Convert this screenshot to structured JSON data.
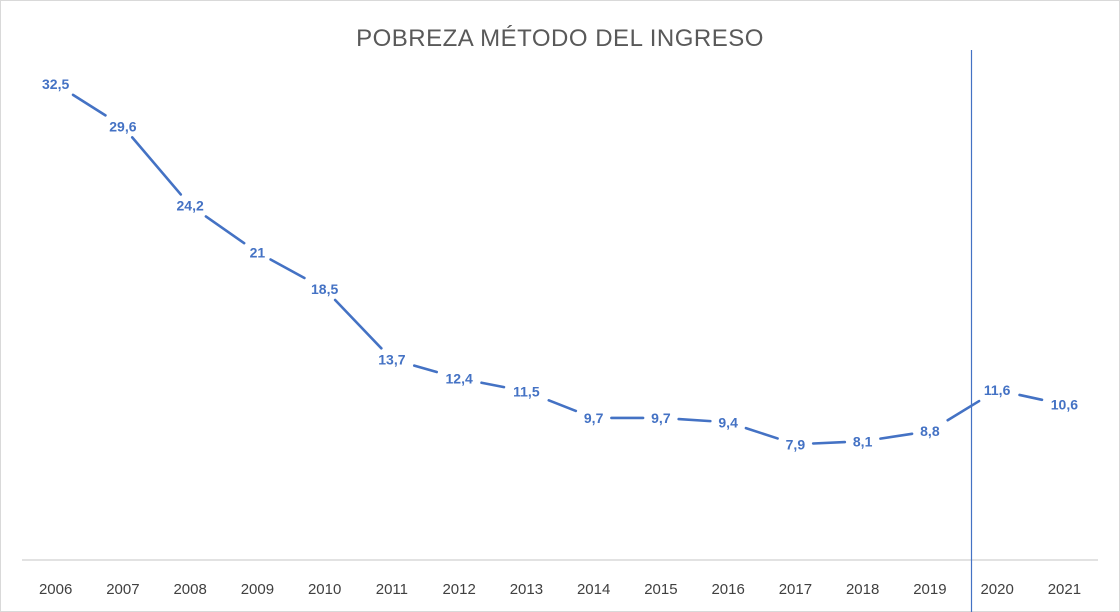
{
  "chart_data": {
    "type": "line",
    "title": "POBREZA MÉTODO DEL INGRESO",
    "categories": [
      "2006",
      "2007",
      "2008",
      "2009",
      "2010",
      "2011",
      "2012",
      "2013",
      "2014",
      "2015",
      "2016",
      "2017",
      "2018",
      "2019",
      "2020",
      "2021"
    ],
    "series": [
      {
        "values": [
          32.5,
          29.6,
          24.2,
          21,
          18.5,
          13.7,
          12.4,
          11.5,
          9.7,
          9.7,
          9.4,
          7.9,
          8.1,
          8.8,
          11.6,
          10.6
        ],
        "labels": [
          "32,5",
          "29,6",
          "24,2",
          "21",
          "18,5",
          "13,7",
          "12,4",
          "11,5",
          "9,7",
          "9,7",
          "9,4",
          "7,9",
          "8,1",
          "8,8",
          "11,6",
          "10,6"
        ],
        "color": "#4472c4"
      }
    ],
    "xlabel": "",
    "ylabel": "",
    "ylim": [
      0,
      35
    ],
    "grid": false,
    "legend": "none",
    "marker_line": {
      "between": [
        "2019",
        "2020"
      ],
      "color": "#4472c4"
    },
    "axis_color": "#d9d9d9",
    "text_color": "#404040"
  }
}
